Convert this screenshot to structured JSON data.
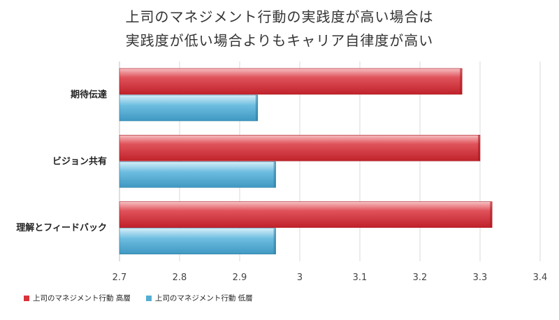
{
  "title_lines": [
    "上司のマネジメント行動の実践度が高い場合は",
    "実践度が低い場合よりもキャリア自律度が高い"
  ],
  "colors": {
    "high": "#d8333c",
    "high_light": "#f29a9e",
    "low": "#55aed2",
    "low_light": "#bfe3f3",
    "grid": "#d9d9d9",
    "axis_text": "#444444"
  },
  "chart_data": {
    "type": "bar",
    "orientation": "horizontal",
    "categories": [
      "期待伝達",
      "ビジョン共有",
      "理解とフィードバック"
    ],
    "series": [
      {
        "name": "上司のマネジメント行動 高層",
        "values": [
          3.27,
          3.3,
          3.32
        ]
      },
      {
        "name": "上司のマネジメント行動 低層",
        "values": [
          2.93,
          2.96,
          2.96
        ]
      }
    ],
    "xlim": [
      2.7,
      3.4
    ],
    "xticks": [
      "2.7",
      "2.8",
      "2.9",
      "3",
      "3.1",
      "3.2",
      "3.3",
      "3.4"
    ],
    "grid": true,
    "legend_position": "bottom-left"
  }
}
